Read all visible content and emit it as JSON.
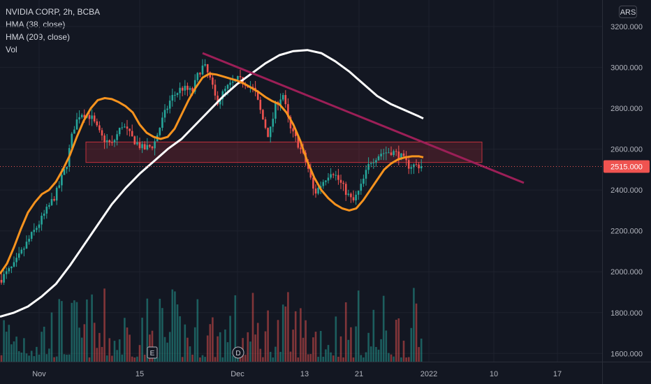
{
  "header": {
    "symbol_line": "NVIDIA CORP, 2h, BCBA",
    "indicators": [
      "HMA (38, close)",
      "HMA (209, close)",
      "Vol"
    ],
    "currency": "ARS"
  },
  "colors": {
    "background": "#131722",
    "grid": "#1e222d",
    "up": "#26a69a",
    "down": "#ef5350",
    "hma_fast": "#f7931e",
    "hma_slow": "#ffffff",
    "trendline": "#9c1f57",
    "zone_fill": "rgba(242,54,69,0.18)",
    "zone_border": "#c2303c",
    "price_line": "#ef5350"
  },
  "chart_data": {
    "type": "candlestick",
    "x_ticks": [
      "Nov",
      "15",
      "Dec",
      "13",
      "21",
      "2022",
      "10",
      "17"
    ],
    "y_ticks": [
      "3200.000",
      "3000.000",
      "2800.000",
      "2600.000",
      "2400.000",
      "2200.000",
      "2000.000",
      "1800.000",
      "1600.000"
    ],
    "ylim": [
      1560,
      3330
    ],
    "last_price": "2515.000",
    "last_price_value": 2515,
    "event_markers": [
      "E",
      "D"
    ],
    "series": [
      {
        "name": "HMA (38, close)",
        "points": [
          [
            0,
            1990
          ],
          [
            10,
            2040
          ],
          [
            20,
            2120
          ],
          [
            30,
            2210
          ],
          [
            40,
            2290
          ],
          [
            50,
            2340
          ],
          [
            60,
            2380
          ],
          [
            70,
            2400
          ],
          [
            80,
            2440
          ],
          [
            90,
            2500
          ],
          [
            100,
            2570
          ],
          [
            110,
            2660
          ],
          [
            120,
            2740
          ],
          [
            130,
            2800
          ],
          [
            140,
            2840
          ],
          [
            150,
            2850
          ],
          [
            160,
            2845
          ],
          [
            170,
            2830
          ],
          [
            180,
            2810
          ],
          [
            190,
            2780
          ],
          [
            200,
            2720
          ],
          [
            210,
            2680
          ],
          [
            220,
            2660
          ],
          [
            230,
            2650
          ],
          [
            240,
            2660
          ],
          [
            250,
            2700
          ],
          [
            260,
            2770
          ],
          [
            270,
            2840
          ],
          [
            280,
            2900
          ],
          [
            290,
            2950
          ],
          [
            300,
            2970
          ],
          [
            310,
            2965
          ],
          [
            320,
            2955
          ],
          [
            330,
            2945
          ],
          [
            340,
            2935
          ],
          [
            350,
            2920
          ],
          [
            360,
            2900
          ],
          [
            370,
            2880
          ],
          [
            380,
            2855
          ],
          [
            390,
            2835
          ],
          [
            400,
            2820
          ],
          [
            410,
            2780
          ],
          [
            420,
            2720
          ],
          [
            430,
            2640
          ],
          [
            440,
            2540
          ],
          [
            450,
            2460
          ],
          [
            460,
            2400
          ],
          [
            470,
            2360
          ],
          [
            480,
            2330
          ],
          [
            490,
            2310
          ],
          [
            500,
            2300
          ],
          [
            510,
            2310
          ],
          [
            520,
            2350
          ],
          [
            530,
            2400
          ],
          [
            540,
            2450
          ],
          [
            550,
            2500
          ],
          [
            560,
            2530
          ],
          [
            570,
            2550
          ],
          [
            580,
            2560
          ],
          [
            590,
            2565
          ],
          [
            600,
            2565
          ],
          [
            606,
            2560
          ]
        ]
      },
      {
        "name": "HMA (209, close)",
        "points": [
          [
            0,
            1780
          ],
          [
            20,
            1800
          ],
          [
            40,
            1830
          ],
          [
            60,
            1880
          ],
          [
            80,
            1940
          ],
          [
            100,
            2030
          ],
          [
            120,
            2130
          ],
          [
            140,
            2230
          ],
          [
            160,
            2330
          ],
          [
            180,
            2410
          ],
          [
            200,
            2480
          ],
          [
            220,
            2540
          ],
          [
            240,
            2600
          ],
          [
            260,
            2650
          ],
          [
            280,
            2720
          ],
          [
            300,
            2790
          ],
          [
            320,
            2860
          ],
          [
            340,
            2920
          ],
          [
            360,
            2970
          ],
          [
            380,
            3020
          ],
          [
            400,
            3060
          ],
          [
            420,
            3080
          ],
          [
            440,
            3085
          ],
          [
            460,
            3070
          ],
          [
            480,
            3030
          ],
          [
            500,
            2980
          ],
          [
            520,
            2920
          ],
          [
            540,
            2860
          ],
          [
            560,
            2820
          ],
          [
            580,
            2790
          ],
          [
            600,
            2760
          ],
          [
            606,
            2750
          ]
        ]
      },
      {
        "name": "trendline",
        "points": [
          [
            290,
            3070
          ],
          [
            750,
            2435
          ]
        ]
      },
      {
        "name": "resistance_zone",
        "x_range": [
          123,
          690
        ],
        "y_range": [
          2535,
          2635
        ]
      }
    ]
  }
}
